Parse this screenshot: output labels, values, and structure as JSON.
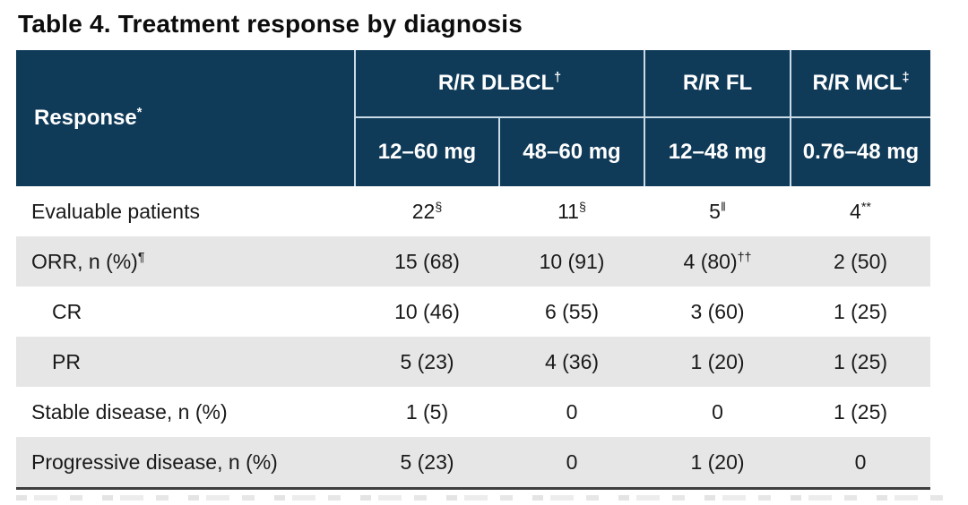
{
  "title": "Table 4. Treatment response by diagnosis",
  "colors": {
    "header_bg": "#0f3a58",
    "header_text": "#ffffff",
    "header_divider": "#c9dbe7",
    "row_alt_bg": "#e6e6e6",
    "body_text": "#1a1a1a",
    "bottom_rule": "#3f3f3f"
  },
  "header": {
    "response_label": "Response",
    "response_sup": "*",
    "groups": [
      {
        "label": "R/R DLBCL",
        "sup": "†"
      },
      {
        "label": "R/R FL",
        "sup": ""
      },
      {
        "label": "R/R MCL",
        "sup": "‡"
      }
    ],
    "doses": [
      "12–60 mg",
      "48–60 mg",
      "12–48 mg",
      "0.76–48 mg"
    ]
  },
  "body": {
    "rows": [
      {
        "label": "Evaluable patients",
        "label_sup": "",
        "cells": [
          {
            "text": "22",
            "sup": "§"
          },
          {
            "text": "11",
            "sup": "§"
          },
          {
            "text": "5",
            "sup": "‖"
          },
          {
            "text": "4",
            "sup": "**"
          }
        ]
      },
      {
        "label": "ORR, n (%)",
        "label_sup": "¶",
        "cells": [
          {
            "text": "15 (68)",
            "sup": ""
          },
          {
            "text": "10 (91)",
            "sup": ""
          },
          {
            "text": "4 (80)",
            "sup": "††"
          },
          {
            "text": "2 (50)",
            "sup": ""
          }
        ]
      },
      {
        "label": "CR",
        "label_sup": "",
        "cells": [
          {
            "text": "10 (46)",
            "sup": ""
          },
          {
            "text": "6 (55)",
            "sup": ""
          },
          {
            "text": "3 (60)",
            "sup": ""
          },
          {
            "text": "1 (25)",
            "sup": ""
          }
        ]
      },
      {
        "label": "PR",
        "label_sup": "",
        "cells": [
          {
            "text": "5 (23)",
            "sup": ""
          },
          {
            "text": "4 (36)",
            "sup": ""
          },
          {
            "text": "1 (20)",
            "sup": ""
          },
          {
            "text": "1 (25)",
            "sup": ""
          }
        ]
      },
      {
        "label": "Stable disease, n (%)",
        "label_sup": "",
        "cells": [
          {
            "text": "1 (5)",
            "sup": ""
          },
          {
            "text": "0",
            "sup": ""
          },
          {
            "text": "0",
            "sup": ""
          },
          {
            "text": "1 (25)",
            "sup": ""
          }
        ]
      },
      {
        "label": "Progressive disease, n (%)",
        "label_sup": "",
        "cells": [
          {
            "text": "5 (23)",
            "sup": ""
          },
          {
            "text": "0",
            "sup": ""
          },
          {
            "text": "1 (20)",
            "sup": ""
          },
          {
            "text": "0",
            "sup": ""
          }
        ]
      }
    ]
  },
  "chart_data": {
    "type": "table",
    "title": "Table 4. Treatment response by diagnosis",
    "column_groups": [
      "R/R DLBCL†",
      "R/R DLBCL†",
      "R/R FL",
      "R/R MCL‡"
    ],
    "columns": [
      "12–60 mg",
      "48–60 mg",
      "12–48 mg",
      "0.76–48 mg"
    ],
    "row_header": "Response*",
    "rows": [
      {
        "label": "Evaluable patients",
        "values": [
          "22§",
          "11§",
          "5‖",
          "4**"
        ]
      },
      {
        "label": "ORR, n (%)¶",
        "values": [
          "15 (68)",
          "10 (91)",
          "4 (80)††",
          "2 (50)"
        ]
      },
      {
        "label": "CR",
        "values": [
          "10 (46)",
          "6 (55)",
          "3 (60)",
          "1 (25)"
        ]
      },
      {
        "label": "PR",
        "values": [
          "5 (23)",
          "4 (36)",
          "1 (20)",
          "1 (25)"
        ]
      },
      {
        "label": "Stable disease, n (%)",
        "values": [
          "1 (5)",
          "0",
          "0",
          "1 (25)"
        ]
      },
      {
        "label": "Progressive disease, n (%)",
        "values": [
          "5 (23)",
          "0",
          "1 (20)",
          "0"
        ]
      }
    ]
  }
}
